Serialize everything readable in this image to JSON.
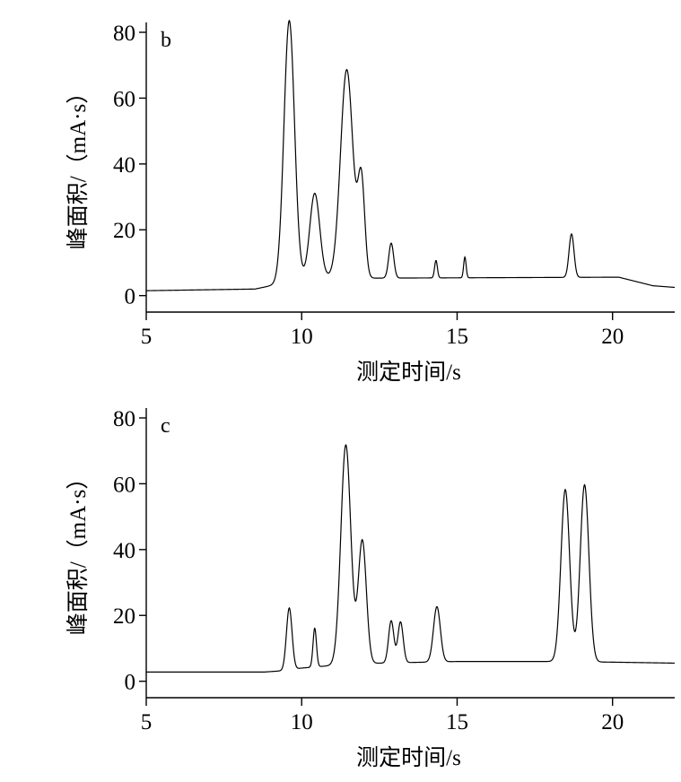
{
  "chart_data": [
    {
      "type": "line",
      "panel_label": "b",
      "xlabel": "测定时间/s",
      "ylabel": "峰面积/（mA·s）",
      "xlim": [
        5,
        22
      ],
      "ylim": [
        -5,
        83
      ],
      "xticks": [
        5,
        10,
        15,
        20
      ],
      "yticks": [
        0,
        20,
        40,
        60,
        80
      ],
      "grid": false,
      "baseline": [
        [
          5,
          1.5
        ],
        [
          8.5,
          2.0
        ],
        [
          9.0,
          3.0
        ],
        [
          10.4,
          5.5
        ],
        [
          12,
          5.3
        ],
        [
          20.2,
          5.6
        ],
        [
          21.3,
          3.0
        ],
        [
          22,
          2.5
        ]
      ],
      "peaks": [
        {
          "x": 9.6,
          "height": 79.5,
          "width": 0.17
        },
        {
          "x": 10.42,
          "height": 25.6,
          "width": 0.16
        },
        {
          "x": 11.45,
          "height": 63.3,
          "width": 0.2
        },
        {
          "x": 11.92,
          "height": 29.1,
          "width": 0.11
        },
        {
          "x": 12.88,
          "height": 10.6,
          "width": 0.08
        },
        {
          "x": 14.32,
          "height": 5.3,
          "width": 0.045
        },
        {
          "x": 15.25,
          "height": 6.3,
          "width": 0.04
        },
        {
          "x": 18.68,
          "height": 13.2,
          "width": 0.08
        }
      ]
    },
    {
      "type": "line",
      "panel_label": "c",
      "xlabel": "测定时间/s",
      "ylabel": "峰面积/（mA·s）",
      "xlim": [
        5,
        22
      ],
      "ylim": [
        -5,
        83
      ],
      "xticks": [
        5,
        10,
        15,
        20
      ],
      "yticks": [
        0,
        20,
        40,
        60,
        80
      ],
      "grid": false,
      "baseline": [
        [
          5,
          2.8
        ],
        [
          8.8,
          2.8
        ],
        [
          9.4,
          3.2
        ],
        [
          10.0,
          4.0
        ],
        [
          11.0,
          4.8
        ],
        [
          12.5,
          5.5
        ],
        [
          15,
          6.0
        ],
        [
          18,
          6.0
        ],
        [
          20,
          5.8
        ],
        [
          22,
          5.5
        ]
      ],
      "peaks": [
        {
          "x": 9.6,
          "height": 18.8,
          "width": 0.09
        },
        {
          "x": 10.42,
          "height": 11.8,
          "width": 0.055
        },
        {
          "x": 11.42,
          "height": 66.8,
          "width": 0.16
        },
        {
          "x": 11.95,
          "height": 37.5,
          "width": 0.13
        },
        {
          "x": 12.88,
          "height": 12.8,
          "width": 0.085
        },
        {
          "x": 13.18,
          "height": 12.4,
          "width": 0.085
        },
        {
          "x": 14.35,
          "height": 16.8,
          "width": 0.11
        },
        {
          "x": 18.48,
          "height": 52.3,
          "width": 0.14
        },
        {
          "x": 19.1,
          "height": 53.8,
          "width": 0.14
        }
      ]
    }
  ]
}
